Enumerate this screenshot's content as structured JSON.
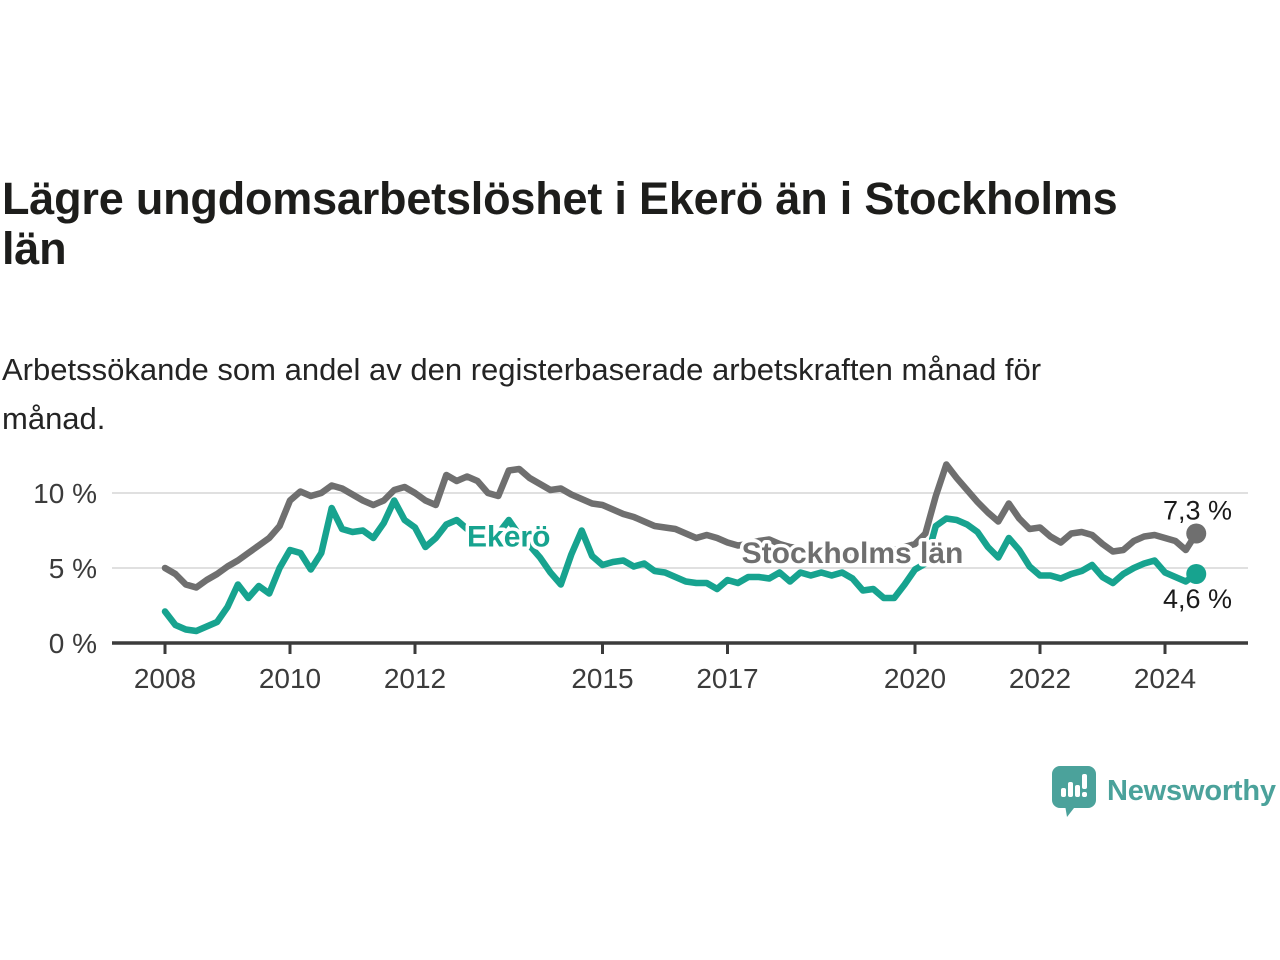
{
  "header": {
    "title": "Lägre ungdomsarbetslöshet i Ekerö än i Stockholms län",
    "subtitle": "Arbetssökande som andel av den registerbaserade arbetskraften månad för månad."
  },
  "chart_data": {
    "type": "line",
    "title": "Lägre ungdomsarbetslöshet i Ekerö än i Stockholms län",
    "subtitle": "Arbetssökande som andel av den registerbaserade arbetskraften månad för månad.",
    "unit": "%",
    "x_start_year": 2008.0,
    "x_step_years": 0.166667,
    "x_end_year": 2024.5,
    "ylim": [
      0,
      12.4
    ],
    "grid": "horizontal-only",
    "colors": {
      "ekero": "#17A38F",
      "stockholm": "#6F6F6F",
      "gridline": "#E0E0E0",
      "axis": "#3b3b3b",
      "value_label": "#1a1a1a"
    },
    "yticks": [
      {
        "value": 0,
        "label": "0 %"
      },
      {
        "value": 5,
        "label": "5 %"
      },
      {
        "value": 10,
        "label": "10 %"
      }
    ],
    "xticks": [
      {
        "year": 2008,
        "label": "2008"
      },
      {
        "year": 2010,
        "label": "2010"
      },
      {
        "year": 2012,
        "label": "2012"
      },
      {
        "year": 2015,
        "label": "2015"
      },
      {
        "year": 2017,
        "label": "2017"
      },
      {
        "year": 2020,
        "label": "2020"
      },
      {
        "year": 2022,
        "label": "2022"
      },
      {
        "year": 2024,
        "label": "2024"
      }
    ],
    "series": [
      {
        "name": "Stockholms län",
        "color": "#6F6F6F",
        "label_anchor": {
          "x_year": 2019.0,
          "y_value": 6.05
        },
        "end_label": "7,3 %",
        "end_label_position": "above",
        "values": [
          5.0,
          4.6,
          3.9,
          3.7,
          4.2,
          4.6,
          5.1,
          5.5,
          6.0,
          6.5,
          7.0,
          7.8,
          9.5,
          10.1,
          9.8,
          10.0,
          10.5,
          10.3,
          9.9,
          9.5,
          9.2,
          9.5,
          10.2,
          10.4,
          10.0,
          9.5,
          9.2,
          11.2,
          10.8,
          11.1,
          10.8,
          10.0,
          9.8,
          11.5,
          11.6,
          11.0,
          10.6,
          10.2,
          10.3,
          9.9,
          9.6,
          9.3,
          9.2,
          8.9,
          8.6,
          8.4,
          8.1,
          7.8,
          7.7,
          7.6,
          7.3,
          7.0,
          7.2,
          7.0,
          6.7,
          6.5,
          6.6,
          6.8,
          6.9,
          6.6,
          6.4,
          6.3,
          6.2,
          6.3,
          6.3,
          6.1,
          6.0,
          5.9,
          6.0,
          6.1,
          6.2,
          6.4,
          6.6,
          7.3,
          9.8,
          11.9,
          11.0,
          10.2,
          9.4,
          8.7,
          8.1,
          9.3,
          8.3,
          7.6,
          7.7,
          7.1,
          6.7,
          7.3,
          7.4,
          7.2,
          6.6,
          6.1,
          6.2,
          6.8,
          7.1,
          7.2,
          7.0,
          6.8,
          6.2,
          7.3
        ]
      },
      {
        "name": "Ekerö",
        "color": "#17A38F",
        "label_anchor": {
          "x_year": 2013.5,
          "y_value": 7.15
        },
        "end_label": "4,6 %",
        "end_label_position": "below",
        "values": [
          2.1,
          1.2,
          0.9,
          0.8,
          1.1,
          1.4,
          2.4,
          3.9,
          3.0,
          3.8,
          3.3,
          5.0,
          6.2,
          6.0,
          4.9,
          6.0,
          9.0,
          7.6,
          7.4,
          7.5,
          7.0,
          8.0,
          9.5,
          8.2,
          7.7,
          6.4,
          7.0,
          7.9,
          8.2,
          7.6,
          7.4,
          7.7,
          7.3,
          8.2,
          7.2,
          6.5,
          5.7,
          4.7,
          3.9,
          5.9,
          7.5,
          5.8,
          5.2,
          5.4,
          5.5,
          5.1,
          5.3,
          4.8,
          4.7,
          4.4,
          4.1,
          4.0,
          4.0,
          3.6,
          4.2,
          4.0,
          4.4,
          4.4,
          4.3,
          4.7,
          4.1,
          4.7,
          4.5,
          4.7,
          4.5,
          4.7,
          4.3,
          3.5,
          3.6,
          3.0,
          3.0,
          3.9,
          4.9,
          5.3,
          7.8,
          8.3,
          8.2,
          7.9,
          7.4,
          6.4,
          5.7,
          7.0,
          6.2,
          5.1,
          4.5,
          4.5,
          4.3,
          4.6,
          4.8,
          5.2,
          4.4,
          4.0,
          4.6,
          5.0,
          5.3,
          5.5,
          4.7,
          4.4,
          4.1,
          4.6
        ]
      }
    ]
  },
  "footer": {
    "brand": "Newsworthy",
    "brand_color": "#4BA29B"
  }
}
